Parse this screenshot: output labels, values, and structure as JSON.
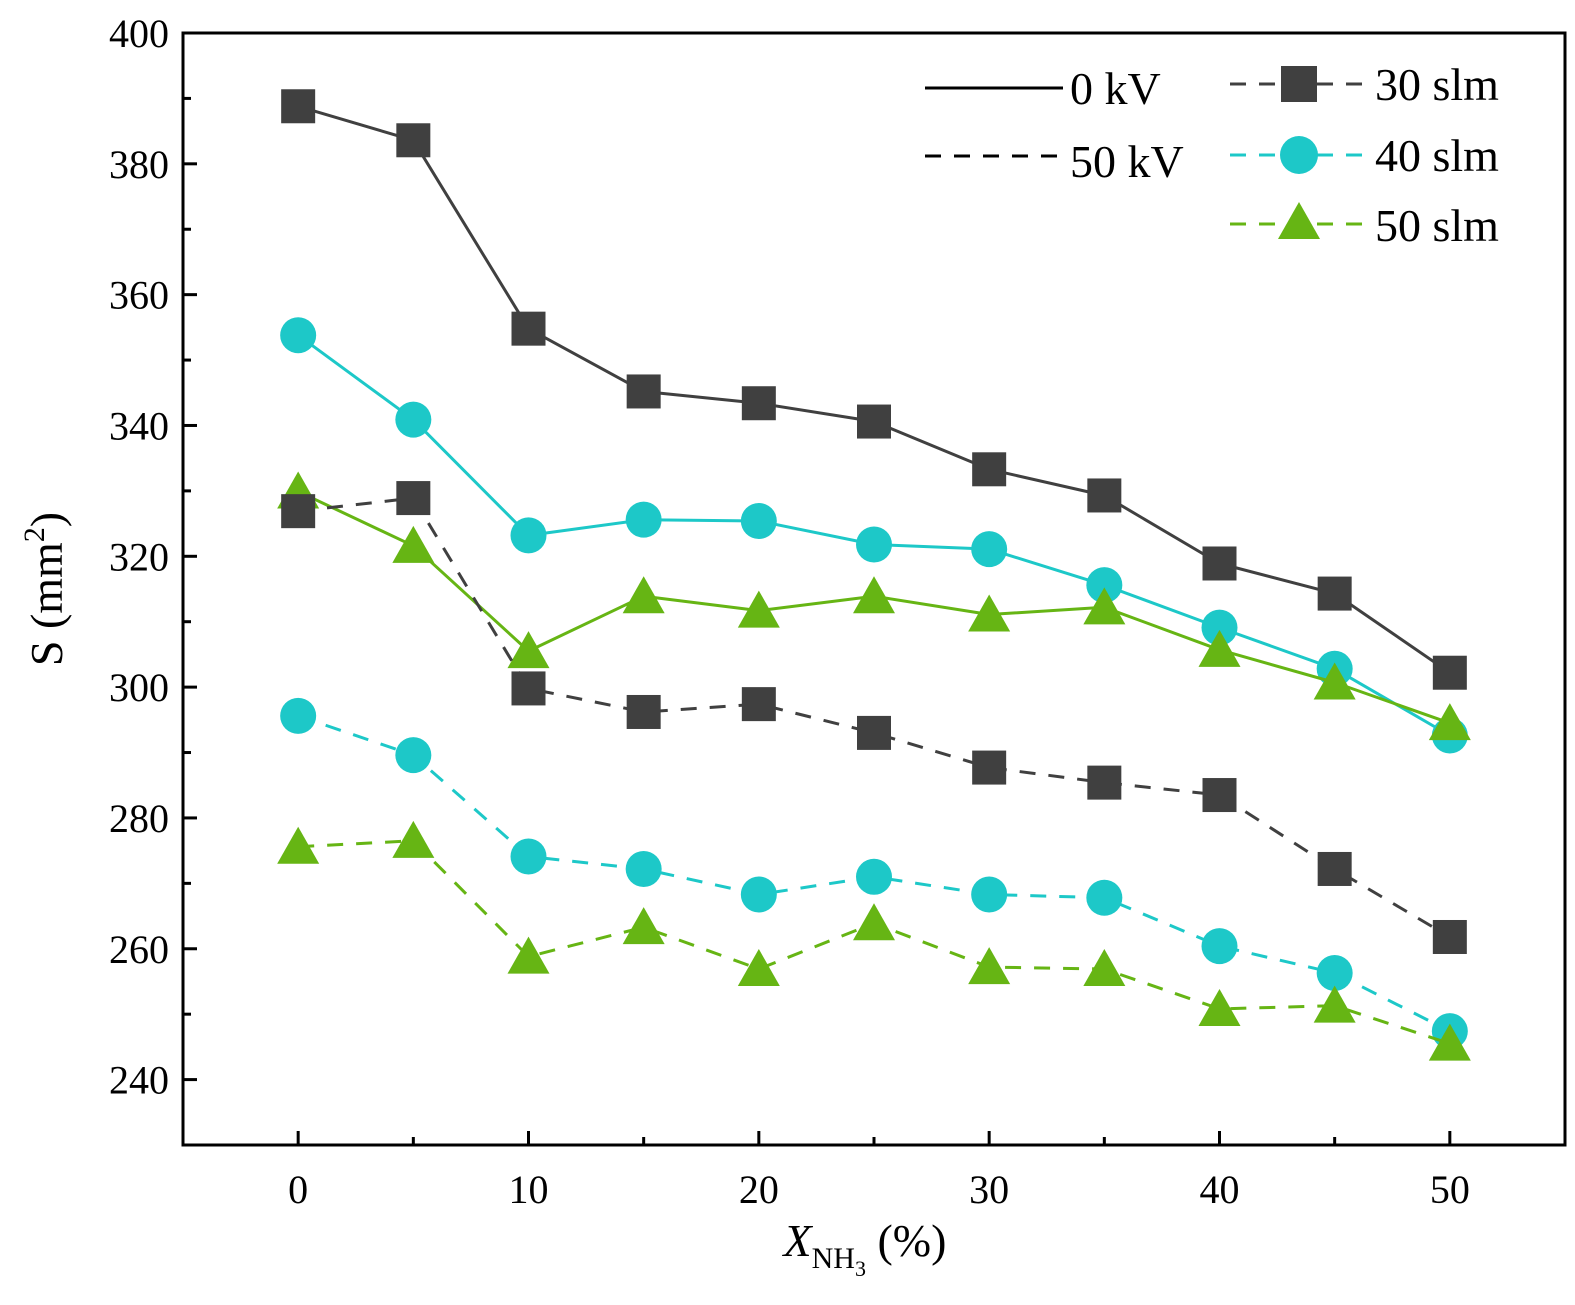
{
  "chart_data": {
    "type": "line",
    "title": "",
    "xlabel": {
      "main": "X",
      "sub": "NH",
      "sub2": "3",
      "unit": " (%)"
    },
    "ylabel": {
      "main": "S (mm",
      "sup": "2",
      "close": ")"
    },
    "xlim": [
      -5,
      55
    ],
    "ylim": [
      230,
      400
    ],
    "xticks": [
      0,
      10,
      20,
      30,
      40,
      50
    ],
    "yticks": [
      240,
      260,
      280,
      300,
      320,
      340,
      360,
      380,
      400
    ],
    "x": [
      0,
      5,
      10,
      15,
      20,
      25,
      30,
      35,
      40,
      45,
      50
    ],
    "series": [
      {
        "name": "30 slm, 0 kV",
        "flow": "30 slm",
        "voltage": "0 kV",
        "color": "#404040",
        "marker": "square",
        "dashed": false,
        "values": [
          388.8,
          383.6,
          354.8,
          345.2,
          343.4,
          340.6,
          333.3,
          329.3,
          318.9,
          314.3,
          302.2
        ]
      },
      {
        "name": "40 slm, 0 kV",
        "flow": "40 slm",
        "voltage": "0 kV",
        "color": "#1DC8C8",
        "marker": "circle",
        "dashed": false,
        "values": [
          353.8,
          340.9,
          323.2,
          325.6,
          325.4,
          321.8,
          321.1,
          315.6,
          309.1,
          302.8,
          292.6
        ]
      },
      {
        "name": "50 slm, 0 kV",
        "flow": "50 slm",
        "voltage": "0 kV",
        "color": "#66B514",
        "marker": "triangle",
        "dashed": false,
        "values": [
          329.9,
          321.6,
          305.5,
          313.9,
          311.7,
          313.9,
          311.1,
          312.2,
          305.7,
          300.7,
          294.5
        ]
      },
      {
        "name": "30 slm, 50 kV",
        "flow": "30 slm",
        "voltage": "50 kV",
        "color": "#404040",
        "marker": "square",
        "dashed": true,
        "values": [
          326.9,
          328.9,
          299.8,
          296.2,
          297.4,
          293.0,
          287.7,
          285.4,
          283.5,
          272.2,
          261.8
        ]
      },
      {
        "name": "40 slm, 50 kV",
        "flow": "40 slm",
        "voltage": "50 kV",
        "color": "#1DC8C8",
        "marker": "circle",
        "dashed": true,
        "values": [
          295.6,
          289.6,
          274.1,
          272.2,
          268.3,
          271.0,
          268.3,
          267.8,
          260.4,
          256.3,
          247.4
        ]
      },
      {
        "name": "50 slm, 50 kV",
        "flow": "50 slm",
        "voltage": "50 kV",
        "color": "#66B514",
        "marker": "triangle",
        "dashed": true,
        "values": [
          275.6,
          276.5,
          258.8,
          263.3,
          256.9,
          263.9,
          257.2,
          256.9,
          250.8,
          251.3,
          245.5
        ]
      }
    ],
    "legend": {
      "placement": "top-right",
      "style_entries": [
        {
          "label": "0 kV",
          "dashed": false
        },
        {
          "label": "50 kV",
          "dashed": true
        }
      ],
      "flow_entries": [
        {
          "label": "30 slm",
          "color": "#404040",
          "marker": "square"
        },
        {
          "label": "40 slm",
          "color": "#1DC8C8",
          "marker": "circle"
        },
        {
          "label": "50 slm",
          "color": "#66B514",
          "marker": "triangle"
        }
      ]
    }
  }
}
